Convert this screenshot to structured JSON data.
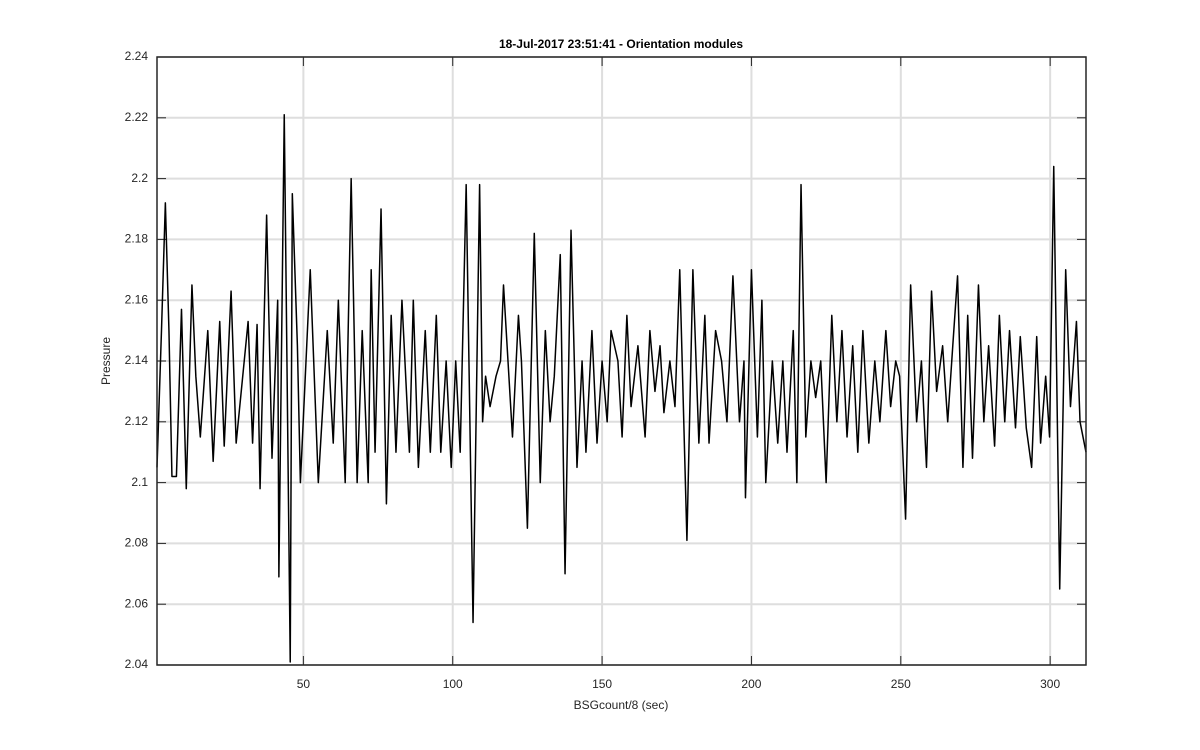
{
  "chart_data": {
    "type": "line",
    "title": "18-Jul-2017 23:51:41 - Orientation modules",
    "x_label": "BSGcount/8 (sec)",
    "y_label": "Pressure",
    "xlim": [
      1,
      312
    ],
    "ylim": [
      2.04,
      2.24
    ],
    "xticks": [
      50,
      100,
      150,
      200,
      250,
      300
    ],
    "yticks": [
      2.04,
      2.06,
      2.08,
      2.1,
      2.12,
      2.14,
      2.16,
      2.18,
      2.2,
      2.22,
      2.24
    ],
    "grid": true,
    "series": [
      {
        "color": "#000000",
        "x": [
          1,
          2.5,
          3.8,
          5,
          6,
          7.5,
          9.2,
          10.8,
          12.7,
          14,
          15.5,
          18,
          19.8,
          22,
          23.5,
          25.8,
          27.5,
          28.5,
          31.5,
          33,
          34.5,
          35.5,
          37.7,
          39.5,
          41.4,
          41.8,
          43.6,
          45.6,
          46.3,
          48,
          49,
          52.3,
          55,
          58,
          60,
          61.7,
          64,
          66,
          68,
          69.7,
          71.7,
          72.7,
          74,
          76,
          77.8,
          79.4,
          81,
          83,
          85.5,
          86.8,
          88.5,
          90.8,
          92.5,
          94.5,
          96,
          97.8,
          99.5,
          101,
          102.5,
          104.5,
          106.8,
          109,
          110,
          111,
          112.5,
          114.5,
          116,
          117,
          118.5,
          120,
          122,
          123,
          125,
          127.3,
          129.3,
          131,
          132.6,
          134,
          136,
          137.6,
          139.6,
          141.6,
          143.3,
          144.6,
          146.6,
          148.3,
          150,
          151.7,
          153,
          155.3,
          156.7,
          158.3,
          159.7,
          162,
          164.4,
          166,
          167.7,
          169.4,
          170.7,
          172.7,
          174.4,
          176,
          178.4,
          180.4,
          182.4,
          184.4,
          185.8,
          188,
          190,
          191.8,
          193.8,
          196,
          197.5,
          198,
          200,
          202,
          203.5,
          204.8,
          207,
          208.8,
          210.5,
          211.9,
          214,
          215.2,
          216.6,
          218.2,
          219.9,
          221.5,
          223.2,
          225,
          226.9,
          228.6,
          230.3,
          232,
          233.9,
          235.6,
          237.3,
          239.3,
          241.3,
          243,
          245,
          246.6,
          248.3,
          249.6,
          251.6,
          253.3,
          255.3,
          256.9,
          258.6,
          260.3,
          262,
          264,
          265.7,
          267.4,
          269,
          270.8,
          272.4,
          274,
          276,
          277.8,
          279.4,
          281.4,
          283,
          284.8,
          286.4,
          288.4,
          290,
          292,
          293.8,
          295.5,
          296.8,
          298.5,
          299.8,
          301.2,
          303.2,
          305.2,
          306.8,
          308.8,
          310,
          312
        ],
        "values": [
          2.105,
          2.15,
          2.192,
          2.15,
          2.102,
          2.102,
          2.157,
          2.098,
          2.165,
          2.135,
          2.115,
          2.15,
          2.107,
          2.153,
          2.112,
          2.163,
          2.113,
          2.123,
          2.153,
          2.113,
          2.152,
          2.098,
          2.188,
          2.108,
          2.16,
          2.069,
          2.221,
          2.041,
          2.195,
          2.145,
          2.1,
          2.17,
          2.1,
          2.15,
          2.113,
          2.16,
          2.1,
          2.2,
          2.1,
          2.15,
          2.1,
          2.17,
          2.11,
          2.19,
          2.093,
          2.155,
          2.11,
          2.16,
          2.11,
          2.16,
          2.105,
          2.15,
          2.11,
          2.155,
          2.11,
          2.14,
          2.105,
          2.14,
          2.11,
          2.198,
          2.054,
          2.198,
          2.12,
          2.135,
          2.125,
          2.135,
          2.14,
          2.165,
          2.14,
          2.115,
          2.155,
          2.14,
          2.085,
          2.182,
          2.1,
          2.15,
          2.12,
          2.135,
          2.175,
          2.07,
          2.183,
          2.105,
          2.14,
          2.11,
          2.15,
          2.113,
          2.14,
          2.12,
          2.15,
          2.14,
          2.115,
          2.155,
          2.125,
          2.145,
          2.115,
          2.15,
          2.13,
          2.145,
          2.123,
          2.14,
          2.125,
          2.17,
          2.081,
          2.17,
          2.113,
          2.155,
          2.113,
          2.15,
          2.14,
          2.12,
          2.168,
          2.12,
          2.14,
          2.095,
          2.17,
          2.115,
          2.16,
          2.1,
          2.14,
          2.113,
          2.14,
          2.11,
          2.15,
          2.1,
          2.198,
          2.115,
          2.14,
          2.128,
          2.14,
          2.1,
          2.155,
          2.12,
          2.15,
          2.115,
          2.145,
          2.11,
          2.15,
          2.113,
          2.14,
          2.12,
          2.15,
          2.125,
          2.14,
          2.135,
          2.088,
          2.165,
          2.12,
          2.14,
          2.105,
          2.163,
          2.13,
          2.145,
          2.12,
          2.145,
          2.168,
          2.105,
          2.155,
          2.108,
          2.165,
          2.12,
          2.145,
          2.112,
          2.155,
          2.12,
          2.15,
          2.118,
          2.148,
          2.118,
          2.105,
          2.148,
          2.113,
          2.135,
          2.115,
          2.204,
          2.065,
          2.17,
          2.125,
          2.153,
          2.12,
          2.11
        ]
      }
    ]
  }
}
